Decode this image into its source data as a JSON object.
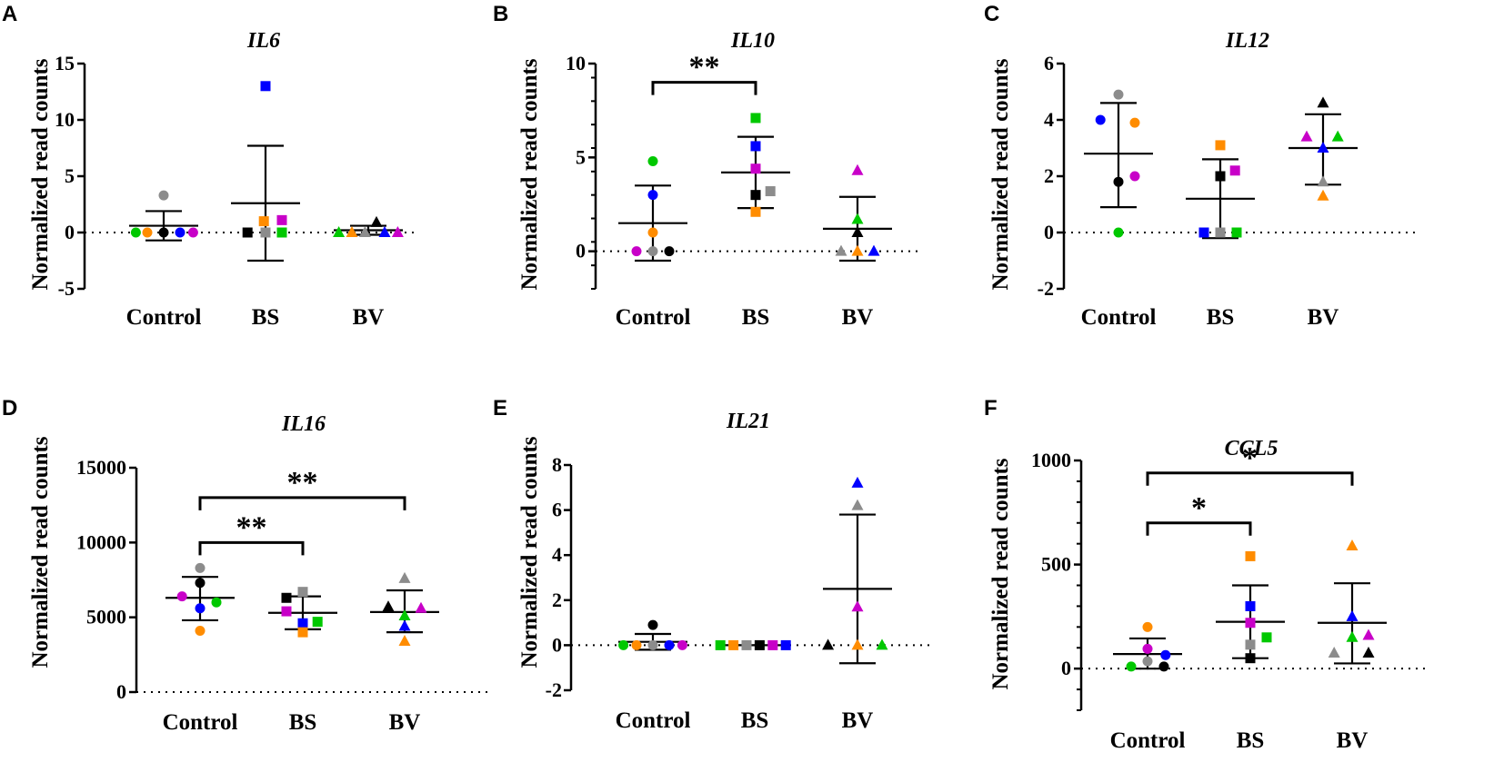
{
  "figure": {
    "ylabel": "Normalized read counts"
  },
  "colors": {
    "green": "#00c800",
    "orange": "#ff8c00",
    "black": "#000000",
    "blue": "#0000ff",
    "magenta": "#c800c8",
    "gray": "#8c8c8c",
    "axis": "#000000"
  },
  "chart_data": [
    {
      "type": "scatter",
      "panel": "A",
      "title": "IL6",
      "ylabel": "Normalized read counts",
      "categories": [
        "Control",
        "BS",
        "BV"
      ],
      "ylim": [
        -5,
        15
      ],
      "yticks": [
        -5,
        0,
        5,
        10,
        15
      ],
      "minor_per_major": 1,
      "markers": [
        "circle",
        "square",
        "triangle"
      ],
      "groups": [
        {
          "name": "Control",
          "mean": 0.6,
          "sd_upper": 1.9,
          "sd_lower": -0.7,
          "points": [
            {
              "color": "green",
              "value": 0,
              "offset": -0.34
            },
            {
              "color": "orange",
              "value": 0,
              "offset": -0.2
            },
            {
              "color": "gray",
              "value": 3.3,
              "offset": 0
            },
            {
              "color": "black",
              "value": 0,
              "offset": 0
            },
            {
              "color": "blue",
              "value": 0,
              "offset": 0.2
            },
            {
              "color": "magenta",
              "value": 0,
              "offset": 0.36
            }
          ]
        },
        {
          "name": "BS",
          "mean": 2.6,
          "sd_upper": 7.7,
          "sd_lower": -2.5,
          "points": [
            {
              "color": "blue",
              "value": 13,
              "offset": 0
            },
            {
              "color": "black",
              "value": 0,
              "offset": -0.22
            },
            {
              "color": "orange",
              "value": 1,
              "offset": -0.02
            },
            {
              "color": "gray",
              "value": 0,
              "offset": 0
            },
            {
              "color": "magenta",
              "value": 1.1,
              "offset": 0.2
            },
            {
              "color": "green",
              "value": 0,
              "offset": 0.2
            }
          ]
        },
        {
          "name": "BV",
          "mean": 0.2,
          "sd_upper": 0.6,
          "sd_lower": -0.2,
          "points": [
            {
              "color": "green",
              "value": 0,
              "offset": -0.36
            },
            {
              "color": "orange",
              "value": 0,
              "offset": -0.2
            },
            {
              "color": "gray",
              "value": 0,
              "offset": -0.04
            },
            {
              "color": "black",
              "value": 0.9,
              "offset": 0.1
            },
            {
              "color": "blue",
              "value": 0,
              "offset": 0.2
            },
            {
              "color": "magenta",
              "value": 0,
              "offset": 0.36
            }
          ]
        }
      ],
      "significance": []
    },
    {
      "type": "scatter",
      "panel": "B",
      "title": "IL10",
      "ylabel": "Normalized read counts",
      "categories": [
        "Control",
        "BS",
        "BV"
      ],
      "ylim": [
        -2,
        10
      ],
      "yticks": [
        0,
        5,
        10
      ],
      "minor_per_major": 4,
      "markers": [
        "circle",
        "square",
        "triangle"
      ],
      "groups": [
        {
          "name": "Control",
          "mean": 1.5,
          "sd_upper": 3.5,
          "sd_lower": -0.5,
          "points": [
            {
              "color": "green",
              "value": 4.8,
              "offset": 0
            },
            {
              "color": "blue",
              "value": 3,
              "offset": 0
            },
            {
              "color": "orange",
              "value": 1,
              "offset": 0
            },
            {
              "color": "magenta",
              "value": 0,
              "offset": -0.2
            },
            {
              "color": "gray",
              "value": 0,
              "offset": 0
            },
            {
              "color": "black",
              "value": 0,
              "offset": 0.2
            }
          ]
        },
        {
          "name": "BS",
          "mean": 4.2,
          "sd_upper": 6.1,
          "sd_lower": 2.3,
          "points": [
            {
              "color": "green",
              "value": 7.1,
              "offset": 0
            },
            {
              "color": "blue",
              "value": 5.6,
              "offset": 0
            },
            {
              "color": "magenta",
              "value": 4.4,
              "offset": 0
            },
            {
              "color": "black",
              "value": 3,
              "offset": 0
            },
            {
              "color": "gray",
              "value": 3.2,
              "offset": 0.18
            },
            {
              "color": "orange",
              "value": 2.1,
              "offset": 0
            }
          ]
        },
        {
          "name": "BV",
          "mean": 1.2,
          "sd_upper": 2.9,
          "sd_lower": -0.5,
          "points": [
            {
              "color": "magenta",
              "value": 4.3,
              "offset": 0
            },
            {
              "color": "green",
              "value": 1.7,
              "offset": 0
            },
            {
              "color": "black",
              "value": 1,
              "offset": 0
            },
            {
              "color": "gray",
              "value": 0,
              "offset": -0.2
            },
            {
              "color": "orange",
              "value": 0,
              "offset": 0
            },
            {
              "color": "blue",
              "value": 0,
              "offset": 0.2
            }
          ]
        }
      ],
      "significance": [
        {
          "from": 0,
          "to": 1,
          "y": 9,
          "label": "**"
        }
      ]
    },
    {
      "type": "scatter",
      "panel": "C",
      "title": "IL12",
      "ylabel": "Normalized read counts",
      "categories": [
        "Control",
        "BS",
        "BV"
      ],
      "ylim": [
        -2,
        6
      ],
      "yticks": [
        -2,
        0,
        2,
        4,
        6
      ],
      "minor_per_major": 1,
      "markers": [
        "circle",
        "square",
        "triangle"
      ],
      "groups": [
        {
          "name": "Control",
          "mean": 2.8,
          "sd_upper": 4.6,
          "sd_lower": 0.9,
          "points": [
            {
              "color": "gray",
              "value": 4.9,
              "offset": 0
            },
            {
              "color": "blue",
              "value": 4,
              "offset": -0.22
            },
            {
              "color": "orange",
              "value": 3.9,
              "offset": 0.2
            },
            {
              "color": "magenta",
              "value": 2,
              "offset": 0.2
            },
            {
              "color": "black",
              "value": 1.8,
              "offset": 0
            },
            {
              "color": "green",
              "value": 0,
              "offset": 0
            }
          ]
        },
        {
          "name": "BS",
          "mean": 1.2,
          "sd_upper": 2.6,
          "sd_lower": -0.2,
          "points": [
            {
              "color": "orange",
              "value": 3.1,
              "offset": 0
            },
            {
              "color": "magenta",
              "value": 2.2,
              "offset": 0.18
            },
            {
              "color": "black",
              "value": 2,
              "offset": 0
            },
            {
              "color": "blue",
              "value": 0,
              "offset": -0.2
            },
            {
              "color": "gray",
              "value": 0,
              "offset": 0
            },
            {
              "color": "green",
              "value": 0,
              "offset": 0.2
            }
          ]
        },
        {
          "name": "BV",
          "mean": 3,
          "sd_upper": 4.2,
          "sd_lower": 1.7,
          "points": [
            {
              "color": "black",
              "value": 4.6,
              "offset": 0
            },
            {
              "color": "magenta",
              "value": 3.4,
              "offset": -0.2
            },
            {
              "color": "blue",
              "value": 3,
              "offset": 0
            },
            {
              "color": "green",
              "value": 3.4,
              "offset": 0.18
            },
            {
              "color": "gray",
              "value": 1.8,
              "offset": 0
            },
            {
              "color": "orange",
              "value": 1.3,
              "offset": 0
            }
          ]
        }
      ],
      "significance": []
    },
    {
      "type": "scatter",
      "panel": "D",
      "title": "IL16",
      "ylabel": "Normalized read counts",
      "categories": [
        "Control",
        "BS",
        "BV"
      ],
      "ylim": [
        0,
        15000
      ],
      "yticks": [
        0,
        5000,
        10000,
        15000
      ],
      "minor_per_major": 1,
      "markers": [
        "circle",
        "square",
        "triangle"
      ],
      "groups": [
        {
          "name": "Control",
          "mean": 6300,
          "sd_upper": 7700,
          "sd_lower": 4800,
          "points": [
            {
              "color": "gray",
              "value": 8300,
              "offset": 0
            },
            {
              "color": "black",
              "value": 7300,
              "offset": 0
            },
            {
              "color": "magenta",
              "value": 6400,
              "offset": -0.22
            },
            {
              "color": "green",
              "value": 6000,
              "offset": 0.2
            },
            {
              "color": "blue",
              "value": 5600,
              "offset": 0
            },
            {
              "color": "orange",
              "value": 4100,
              "offset": 0
            }
          ]
        },
        {
          "name": "BS",
          "mean": 5300,
          "sd_upper": 6400,
          "sd_lower": 4200,
          "points": [
            {
              "color": "black",
              "value": 6300,
              "offset": -0.2
            },
            {
              "color": "gray",
              "value": 6700,
              "offset": 0
            },
            {
              "color": "magenta",
              "value": 5400,
              "offset": -0.2
            },
            {
              "color": "blue",
              "value": 4600,
              "offset": 0
            },
            {
              "color": "green",
              "value": 4700,
              "offset": 0.18
            },
            {
              "color": "orange",
              "value": 4000,
              "offset": 0
            }
          ]
        },
        {
          "name": "BV",
          "mean": 5350,
          "sd_upper": 6800,
          "sd_lower": 4000,
          "points": [
            {
              "color": "gray",
              "value": 7600,
              "offset": 0
            },
            {
              "color": "black",
              "value": 5700,
              "offset": -0.2
            },
            {
              "color": "magenta",
              "value": 5600,
              "offset": 0.2
            },
            {
              "color": "green",
              "value": 5100,
              "offset": 0
            },
            {
              "color": "blue",
              "value": 4400,
              "offset": 0
            },
            {
              "color": "orange",
              "value": 3400,
              "offset": 0
            }
          ]
        }
      ],
      "significance": [
        {
          "from": 0,
          "to": 1,
          "y": 10000,
          "label": "**"
        },
        {
          "from": 0,
          "to": 2,
          "y": 13000,
          "label": "**"
        }
      ]
    },
    {
      "type": "scatter",
      "panel": "E",
      "title": "IL21",
      "ylabel": "Normalized read counts",
      "categories": [
        "Control",
        "BS",
        "BV"
      ],
      "ylim": [
        -2,
        8
      ],
      "yticks": [
        -2,
        0,
        2,
        4,
        6,
        8
      ],
      "minor_per_major": 1,
      "markers": [
        "circle",
        "square",
        "triangle"
      ],
      "groups": [
        {
          "name": "Control",
          "mean": 0.15,
          "sd_upper": 0.5,
          "sd_lower": -0.2,
          "points": [
            {
              "color": "green",
              "value": 0,
              "offset": -0.36
            },
            {
              "color": "orange",
              "value": 0,
              "offset": -0.2
            },
            {
              "color": "black",
              "value": 0.9,
              "offset": 0
            },
            {
              "color": "gray",
              "value": 0,
              "offset": 0
            },
            {
              "color": "blue",
              "value": 0,
              "offset": 0.2
            },
            {
              "color": "magenta",
              "value": 0,
              "offset": 0.36
            }
          ]
        },
        {
          "name": "BS",
          "mean": 0,
          "sd_upper": 0,
          "sd_lower": 0,
          "points": [
            {
              "color": "green",
              "value": 0,
              "offset": -0.42
            },
            {
              "color": "orange",
              "value": 0,
              "offset": -0.26
            },
            {
              "color": "gray",
              "value": 0,
              "offset": -0.1
            },
            {
              "color": "black",
              "value": 0,
              "offset": 0.06
            },
            {
              "color": "magenta",
              "value": 0,
              "offset": 0.22
            },
            {
              "color": "blue",
              "value": 0,
              "offset": 0.38
            }
          ]
        },
        {
          "name": "BV",
          "mean": 2.5,
          "sd_upper": 5.8,
          "sd_lower": -0.8,
          "points": [
            {
              "color": "blue",
              "value": 7.2,
              "offset": 0
            },
            {
              "color": "gray",
              "value": 6.2,
              "offset": 0
            },
            {
              "color": "magenta",
              "value": 1.7,
              "offset": 0
            },
            {
              "color": "black",
              "value": 0,
              "offset": -0.36
            },
            {
              "color": "orange",
              "value": 0,
              "offset": 0
            },
            {
              "color": "green",
              "value": 0,
              "offset": 0.3
            }
          ]
        }
      ],
      "significance": []
    },
    {
      "type": "scatter",
      "panel": "F",
      "title": "CCL5",
      "ylabel": "Normalized read counts",
      "categories": [
        "Control",
        "BS",
        "BV"
      ],
      "ylim": [
        -200,
        1000
      ],
      "yticks": [
        0,
        500,
        1000
      ],
      "minor_per_major": 5,
      "markers": [
        "circle",
        "square",
        "triangle"
      ],
      "groups": [
        {
          "name": "Control",
          "mean": 70,
          "sd_upper": 145,
          "sd_lower": 0,
          "points": [
            {
              "color": "orange",
              "value": 200,
              "offset": 0
            },
            {
              "color": "magenta",
              "value": 95,
              "offset": 0
            },
            {
              "color": "blue",
              "value": 65,
              "offset": 0.22
            },
            {
              "color": "gray",
              "value": 35,
              "offset": 0
            },
            {
              "color": "green",
              "value": 10,
              "offset": -0.2
            },
            {
              "color": "black",
              "value": 10,
              "offset": 0.2
            }
          ]
        },
        {
          "name": "BS",
          "mean": 225,
          "sd_upper": 400,
          "sd_lower": 50,
          "points": [
            {
              "color": "orange",
              "value": 540,
              "offset": 0
            },
            {
              "color": "blue",
              "value": 300,
              "offset": 0
            },
            {
              "color": "magenta",
              "value": 220,
              "offset": 0
            },
            {
              "color": "green",
              "value": 150,
              "offset": 0.2
            },
            {
              "color": "gray",
              "value": 115,
              "offset": 0
            },
            {
              "color": "black",
              "value": 50,
              "offset": 0
            }
          ]
        },
        {
          "name": "BV",
          "mean": 220,
          "sd_upper": 410,
          "sd_lower": 25,
          "points": [
            {
              "color": "orange",
              "value": 590,
              "offset": 0
            },
            {
              "color": "blue",
              "value": 250,
              "offset": 0
            },
            {
              "color": "magenta",
              "value": 160,
              "offset": 0.2
            },
            {
              "color": "green",
              "value": 150,
              "offset": 0
            },
            {
              "color": "gray",
              "value": 75,
              "offset": -0.22
            },
            {
              "color": "black",
              "value": 75,
              "offset": 0.2
            }
          ]
        }
      ],
      "significance": [
        {
          "from": 0,
          "to": 1,
          "y": 700,
          "label": "*"
        },
        {
          "from": 0,
          "to": 2,
          "y": 940,
          "label": "*"
        }
      ]
    }
  ]
}
